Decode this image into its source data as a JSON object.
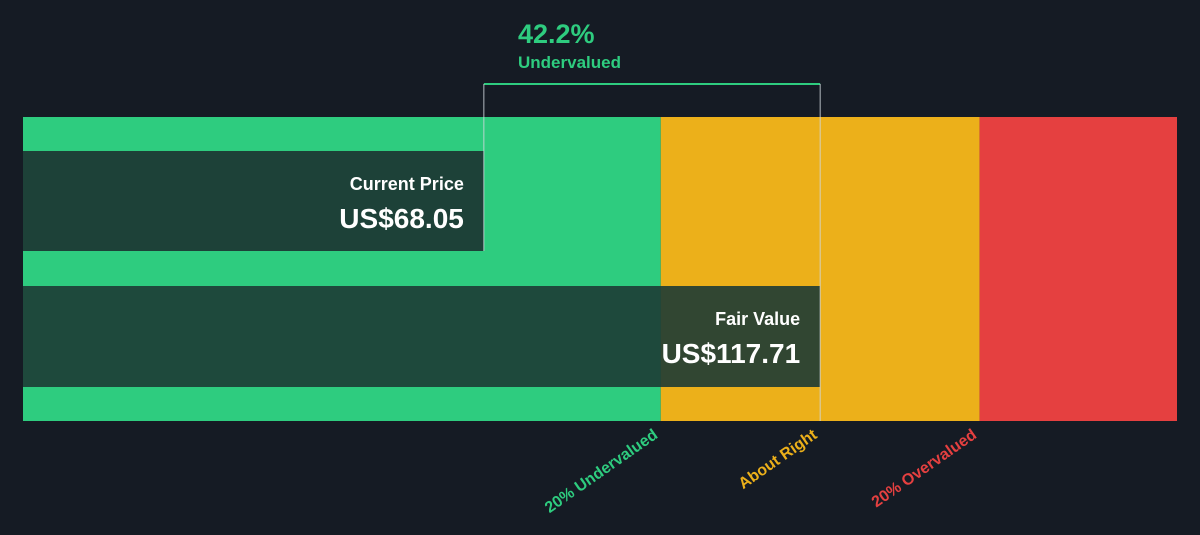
{
  "chart_data": {
    "type": "bar",
    "title": "",
    "currency": "US$",
    "current_price": {
      "label": "Current Price",
      "value": 68.05,
      "display": "US$68.05"
    },
    "fair_value": {
      "label": "Fair Value",
      "value": 117.71,
      "display": "US$117.71"
    },
    "discount": {
      "percent": 42.2,
      "display": "42.2%",
      "label": "Undervalued"
    },
    "zones": [
      {
        "name": "20% Undervalued",
        "color": "#2ecc7f"
      },
      {
        "name": "About Right",
        "color": "#ecb01a"
      },
      {
        "name": "20% Overvalued",
        "color": "#e54040"
      }
    ],
    "zone_thresholds": {
      "undervalued_upper": 94.17,
      "overvalued_lower": 141.25
    },
    "axis_max": 170.4
  },
  "colors": {
    "background": "#151b24",
    "green": "#2ecc7f",
    "amber": "#ecb01a",
    "red": "#e54040",
    "bar_overlay": "#1d3b35",
    "text_light": "#ffffff",
    "bracket": "#cfd6dc"
  }
}
